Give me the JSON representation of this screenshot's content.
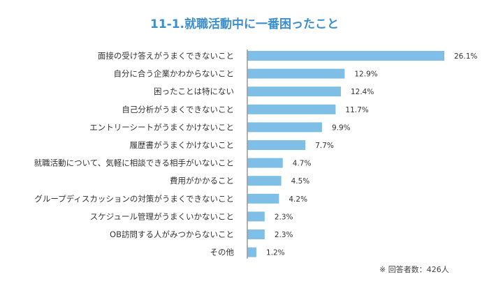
{
  "chart_data": {
    "type": "bar",
    "orientation": "horizontal",
    "title": "11-1.就職活動中に一番困ったこと",
    "categories": [
      "面接の受け答えがうまくできないこと",
      "自分に合う企業かわからないこと",
      "困ったことは特にない",
      "自己分析がうまくできないこと",
      "エントリーシートがうまくかけないこと",
      "履歴書がうまくかけないこと",
      "就職活動について、気軽に相談できる相手がいないこと",
      "費用がかかること",
      "グループディスカッションの対策がうまくできないこと",
      "スケジュール管理がうまくいかないこと",
      "OB訪問する人がみつからないこと",
      "その他"
    ],
    "values": [
      26.1,
      12.9,
      12.4,
      11.7,
      9.9,
      7.7,
      4.7,
      4.5,
      4.2,
      2.3,
      2.3,
      1.2
    ],
    "value_labels": [
      "26.1%",
      "12.9%",
      "12.4%",
      "11.7%",
      "9.9%",
      "7.7%",
      "4.7%",
      "4.5%",
      "4.2%",
      "2.3%",
      "2.3%",
      "1.2%"
    ],
    "unit": "%",
    "xlim": [
      0,
      26.1
    ],
    "grid": false,
    "bar_color": "#7fbfe7",
    "title_color": "#3d8fcc",
    "note": "※ 回答者数：426人"
  }
}
